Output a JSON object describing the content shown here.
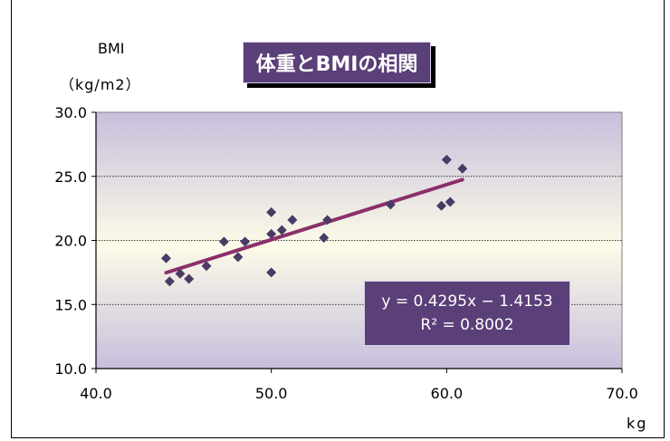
{
  "chart_data": {
    "type": "scatter",
    "title": "体重とBMIの相関",
    "ylabel": "BMI",
    "ylabel_unit": "（kg/m2）",
    "xlabel": "kg",
    "xlim": [
      40,
      70
    ],
    "ylim": [
      10,
      30
    ],
    "x_ticks": [
      "40.0",
      "50.0",
      "60.0",
      "70.0"
    ],
    "y_ticks": [
      "10.0",
      "15.0",
      "20.0",
      "25.0",
      "30.0"
    ],
    "grid": true,
    "series": [
      {
        "points": [
          [
            44.0,
            18.6
          ],
          [
            44.2,
            16.8
          ],
          [
            44.8,
            17.4
          ],
          [
            45.3,
            17.0
          ],
          [
            46.3,
            18.0
          ],
          [
            47.3,
            19.9
          ],
          [
            48.1,
            18.7
          ],
          [
            48.5,
            19.9
          ],
          [
            50.0,
            22.2
          ],
          [
            50.0,
            20.5
          ],
          [
            50.0,
            17.5
          ],
          [
            50.6,
            20.8
          ],
          [
            51.2,
            21.6
          ],
          [
            53.0,
            20.2
          ],
          [
            53.2,
            21.6
          ],
          [
            56.8,
            22.8
          ],
          [
            59.7,
            22.7
          ],
          [
            60.0,
            26.3
          ],
          [
            60.2,
            23.0
          ],
          [
            60.9,
            25.6
          ]
        ]
      }
    ],
    "trendline": {
      "slope": 0.4295,
      "intercept": -1.4153,
      "x_range": [
        44.0,
        60.9
      ],
      "equation": "y = 0.4295x − 1.4153",
      "r2_label": "R² = 0.8002"
    },
    "colors": {
      "marker": "#4b3a66",
      "trendline": "#8b2f6b",
      "label_box": "#5a3f78",
      "plot_top": "#c7bfdc",
      "plot_mid": "#fdfbe8"
    }
  }
}
